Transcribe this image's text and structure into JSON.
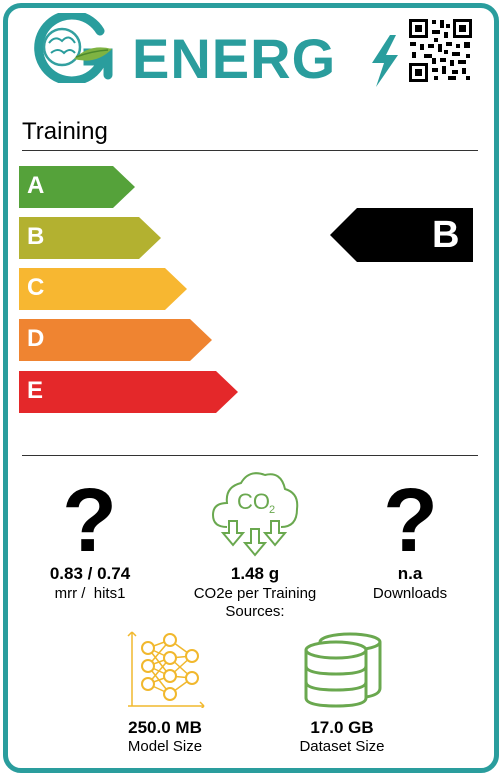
{
  "header": {
    "brand": "ENERG",
    "logo_icon": "brain-leaf-icon",
    "bolt_icon": "lightning-bolt-icon",
    "qr_icon": "qr-code-icon"
  },
  "section": {
    "title": "Training"
  },
  "scale": [
    {
      "letter": "A",
      "color": "#55a23a"
    },
    {
      "letter": "B",
      "color": "#b3b130"
    },
    {
      "letter": "C",
      "color": "#f7b731"
    },
    {
      "letter": "D",
      "color": "#ef8431"
    },
    {
      "letter": "E",
      "color": "#e4282a"
    }
  ],
  "rating": {
    "letter": "B"
  },
  "metrics": {
    "performance": {
      "icon": "question-mark",
      "value": "0.83 / 0.74",
      "label": "mrr /  hits1"
    },
    "co2": {
      "icon": "co2-cloud-icon",
      "value": "1.48 g",
      "label": "CO2e per Training",
      "sub_label": "Sources:"
    },
    "downloads": {
      "icon": "question-mark",
      "value": "n.a",
      "label": "Downloads"
    },
    "model_size": {
      "icon": "neural-network-icon",
      "value": "250.0 MB",
      "label": "Model Size"
    },
    "dataset_size": {
      "icon": "database-icon",
      "value": "17.0 GB",
      "label": "Dataset Size"
    }
  },
  "colors": {
    "frame": "#2a9d9d",
    "co2_icon": "#6aa84f",
    "model_icon": "#f1b82d",
    "dataset_icon": "#6aa84f"
  }
}
